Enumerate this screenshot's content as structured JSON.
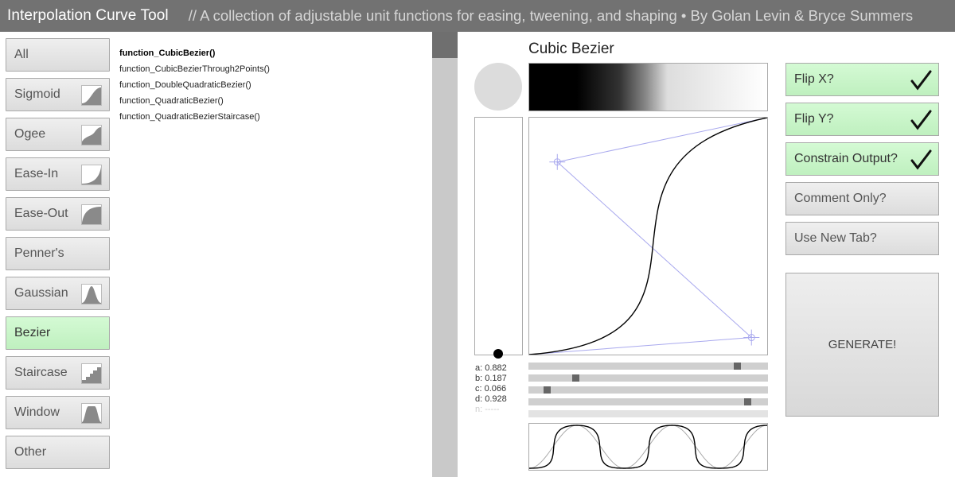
{
  "header": {
    "title": "Interpolation Curve Tool",
    "subtitle": "//  A collection of adjustable unit functions for easing, tweening, and shaping • By Golan Levin & Bryce Summers"
  },
  "categories": [
    {
      "label": "All",
      "icon": "",
      "active": false
    },
    {
      "label": "Sigmoid",
      "icon": "sigmoid-icon",
      "active": false
    },
    {
      "label": "Ogee",
      "icon": "ogee-icon",
      "active": false
    },
    {
      "label": "Ease-In",
      "icon": "ease-in-icon",
      "active": false
    },
    {
      "label": "Ease-Out",
      "icon": "ease-out-icon",
      "active": false
    },
    {
      "label": "Penner's",
      "icon": "",
      "active": false
    },
    {
      "label": "Gaussian",
      "icon": "gaussian-icon",
      "active": false
    },
    {
      "label": "Bezier",
      "icon": "",
      "active": true
    },
    {
      "label": "Staircase",
      "icon": "staircase-icon",
      "active": false
    },
    {
      "label": "Window",
      "icon": "window-icon",
      "active": false
    },
    {
      "label": "Other",
      "icon": "",
      "active": false
    }
  ],
  "functions": [
    {
      "label": "function_CubicBezier()",
      "selected": true
    },
    {
      "label": "function_CubicBezierThrough2Points()",
      "selected": false
    },
    {
      "label": "function_DoubleQuadraticBezier()",
      "selected": false
    },
    {
      "label": "function_QuadraticBezier()",
      "selected": false
    },
    {
      "label": "function_QuadraticBezierStaircase()",
      "selected": false
    }
  ],
  "visualizer": {
    "title": "Cubic Bezier"
  },
  "params": [
    {
      "label": "a: 0.882",
      "value": 0.882,
      "enabled": true
    },
    {
      "label": "b: 0.187",
      "value": 0.187,
      "enabled": true
    },
    {
      "label": "c: 0.066",
      "value": 0.066,
      "enabled": true
    },
    {
      "label": "d: 0.928",
      "value": 0.928,
      "enabled": true
    },
    {
      "label": "n: -----",
      "value": null,
      "enabled": false
    }
  ],
  "options": [
    {
      "label": "Flip X?",
      "checked": true
    },
    {
      "label": "Flip Y?",
      "checked": true
    },
    {
      "label": "Constrain Output?",
      "checked": true
    },
    {
      "label": "Comment Only?",
      "checked": false
    },
    {
      "label": "Use New Tab?",
      "checked": false
    }
  ],
  "generate": {
    "label": "GENERATE!"
  },
  "colors": {
    "active_green": "#c8f5c8",
    "button_gray": "#e5e5e5",
    "header_gray": "#727272",
    "control_line": "#a9a9ee"
  }
}
